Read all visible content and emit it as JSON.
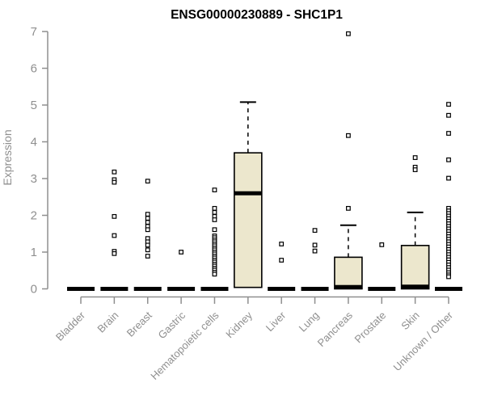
{
  "chart_data": {
    "type": "boxplot",
    "title": "ENSG00000230889 - SHC1P1",
    "ylabel": "Expression",
    "xlabel": "",
    "ylim": [
      0,
      7
    ],
    "yticks": [
      0,
      1,
      2,
      3,
      4,
      5,
      6,
      7
    ],
    "grid": false,
    "legend": "none",
    "marker": "open-square",
    "categories": [
      "Bladder",
      "Brain",
      "Breast",
      "Gastric",
      "Hematopoietic cells",
      "Kidney",
      "Liver",
      "Lung",
      "Pancreas",
      "Prostate",
      "Skin",
      "Unknown / Other"
    ],
    "series": [
      {
        "name": "Bladder",
        "q1": 0,
        "median": 0,
        "q3": 0,
        "whisker_high": null,
        "outliers": []
      },
      {
        "name": "Brain",
        "q1": 0,
        "median": 0,
        "q3": 0,
        "whisker_high": null,
        "outliers": [
          3.18,
          2.97,
          2.9,
          1.97,
          1.45,
          1.02,
          0.96
        ]
      },
      {
        "name": "Breast",
        "q1": 0,
        "median": 0,
        "q3": 0,
        "whisker_high": null,
        "outliers": [
          2.93,
          2.03,
          1.92,
          1.81,
          1.7,
          1.61,
          1.37,
          1.28,
          1.19,
          1.06,
          0.89
        ]
      },
      {
        "name": "Gastric",
        "q1": 0,
        "median": 0,
        "q3": 0,
        "whisker_high": null,
        "outliers": [
          1.0
        ]
      },
      {
        "name": "Hematopoietic cells",
        "q1": 0,
        "median": 0,
        "q3": 0,
        "whisker_high": null,
        "outliers": [
          2.69,
          2.19,
          2.08,
          1.97,
          1.88,
          1.61,
          1.44,
          1.39,
          1.33,
          1.28,
          1.22,
          1.17,
          1.11,
          1.06,
          1.0,
          0.95,
          0.89,
          0.84,
          0.78,
          0.73,
          0.67,
          0.62,
          0.56,
          0.51,
          0.45,
          0.4
        ]
      },
      {
        "name": "Kidney",
        "q1": 0.04,
        "median": 2.6,
        "q3": 3.7,
        "whisker_high": 5.08,
        "outliers": []
      },
      {
        "name": "Liver",
        "q1": 0,
        "median": 0,
        "q3": 0,
        "whisker_high": null,
        "outliers": [
          1.22,
          0.78
        ]
      },
      {
        "name": "Lung",
        "q1": 0,
        "median": 0,
        "q3": 0,
        "whisker_high": null,
        "outliers": [
          1.59,
          1.19,
          1.03
        ]
      },
      {
        "name": "Pancreas",
        "q1": 0,
        "median": 0.05,
        "q3": 0.86,
        "whisker_high": 1.73,
        "outliers": [
          6.94,
          4.17,
          2.19
        ]
      },
      {
        "name": "Prostate",
        "q1": 0,
        "median": 0,
        "q3": 0,
        "whisker_high": null,
        "outliers": [
          1.2
        ]
      },
      {
        "name": "Skin",
        "q1": 0,
        "median": 0.06,
        "q3": 1.18,
        "whisker_high": 2.08,
        "outliers": [
          3.57,
          3.31,
          3.24
        ]
      },
      {
        "name": "Unknown / Other",
        "q1": 0,
        "median": 0,
        "q3": 0,
        "whisker_high": null,
        "outliers": [
          5.02,
          4.72,
          4.23,
          3.51,
          3.01,
          2.19,
          2.12,
          2.05,
          1.98,
          1.91,
          1.84,
          1.77,
          1.7,
          1.63,
          1.56,
          1.49,
          1.42,
          1.35,
          1.28,
          1.21,
          1.14,
          1.07,
          1.0,
          0.93,
          0.86,
          0.79,
          0.72,
          0.65,
          0.58,
          0.51,
          0.44,
          0.38,
          0.33
        ]
      }
    ],
    "colors": {
      "box_fill": "#ece7cd",
      "box_border": "#000000",
      "median": "#000000",
      "outlier_stroke": "#000000",
      "outlier_fill": "#ffffff",
      "axis": "#8f8f8f",
      "tick_label": "#8f8f8f",
      "title": "#000000",
      "background": "#ffffff"
    }
  }
}
